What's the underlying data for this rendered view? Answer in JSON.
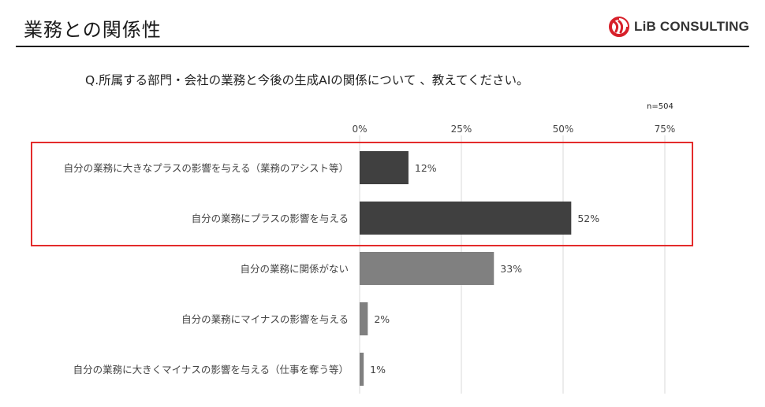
{
  "header": {
    "title": "業務との関係性",
    "logo_text": "LiB CONSULTING"
  },
  "question": "Q.所属する部門・会社の業務と今後の生成AIの関係について 、教えてください。",
  "sample_size": "n=504",
  "colors": {
    "bar_dark": "#404040",
    "bar_gray": "#808080",
    "highlight": "#e32b2b",
    "logo_red": "#d7202a",
    "grid": "#d9d9d9"
  },
  "chart_data": {
    "type": "bar",
    "orientation": "horizontal",
    "categories": [
      "自分の業務に大きなプラスの影響を与える（業務のアシスト等）",
      "自分の業務にプラスの影響を与える",
      "自分の業務に関係がない",
      "自分の業務にマイナスの影響を与える",
      "自分の業務に大きくマイナスの影響を与える（仕事を奪う等）"
    ],
    "values": [
      12,
      52,
      33,
      2,
      1
    ],
    "value_labels": [
      "12%",
      "52%",
      "33%",
      "2%",
      "1%"
    ],
    "bar_colors": [
      "#404040",
      "#404040",
      "#808080",
      "#808080",
      "#808080"
    ],
    "xlim": [
      0,
      80
    ],
    "xticks": [
      0,
      25,
      50,
      75
    ],
    "xtick_labels": [
      "0%",
      "25%",
      "50%",
      "75%"
    ],
    "axis_position": "top",
    "grid": true,
    "highlighted_categories": [
      0,
      1
    ]
  }
}
